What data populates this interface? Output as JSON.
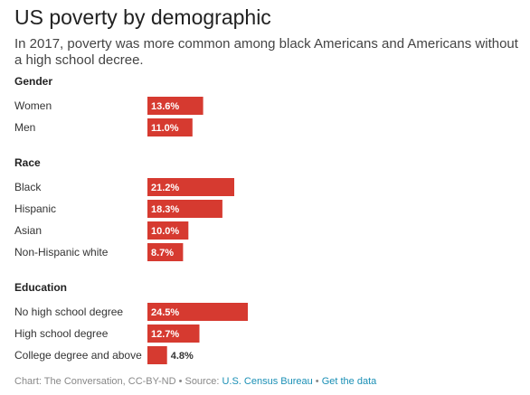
{
  "title": "US poverty by demographic",
  "subtitle": "In 2017, poverty was more common among black Americans and Americans without a high school decree.",
  "footer": {
    "prefix": "Chart: The Conversation, CC-BY-ND • Source: ",
    "source_link": "U.S. Census Bureau",
    "separator": " • ",
    "data_link": "Get the data"
  },
  "colors": {
    "bar": "#d63a30",
    "bar_label_inside": "#ffffff",
    "bar_label_outside": "#333333"
  },
  "chart_data": {
    "type": "bar",
    "orientation": "horizontal",
    "unit": "%",
    "xlim": [
      0,
      24.5
    ],
    "groups": [
      {
        "name": "Gender",
        "categories": [
          "Women",
          "Men"
        ],
        "values": [
          13.6,
          11.0
        ],
        "labels": [
          "13.6%",
          "11.0%"
        ]
      },
      {
        "name": "Race",
        "categories": [
          "Black",
          "Hispanic",
          "Asian",
          "Non-Hispanic white"
        ],
        "values": [
          21.2,
          18.3,
          10.0,
          8.7
        ],
        "labels": [
          "21.2%",
          "18.3%",
          "10.0%",
          "8.7%"
        ]
      },
      {
        "name": "Education",
        "categories": [
          "No high school degree",
          "High school degree",
          "College degree and above"
        ],
        "values": [
          24.5,
          12.7,
          4.8
        ],
        "labels": [
          "24.5%",
          "12.7%",
          "4.8%"
        ]
      }
    ]
  }
}
